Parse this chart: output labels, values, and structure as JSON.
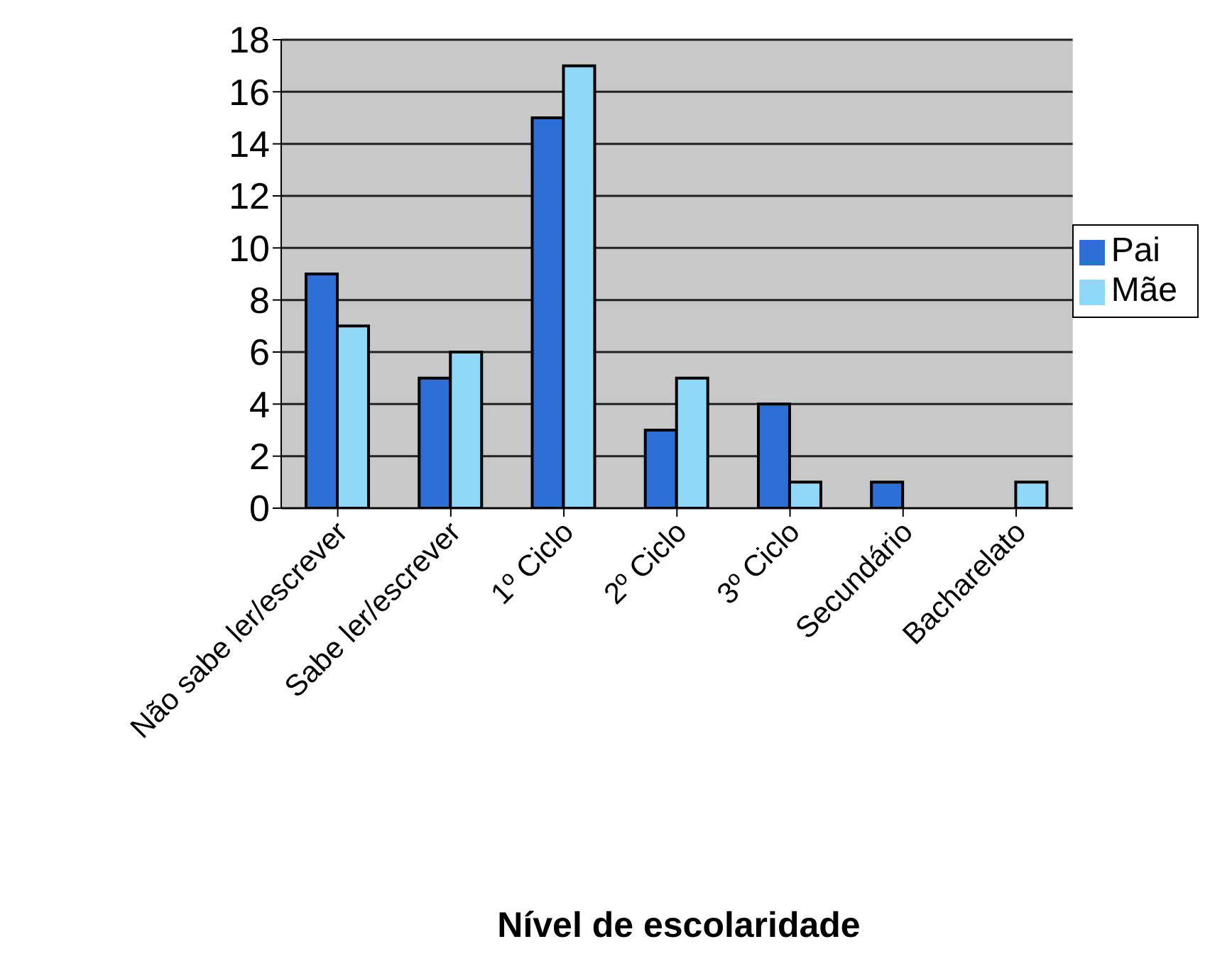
{
  "chart_data": {
    "type": "bar",
    "xlabel": "Nível de escolaridade",
    "categories": [
      "Não sabe ler/escrever",
      "Sabe ler/escrever",
      "1º Ciclo",
      "2º Ciclo",
      "3º Ciclo",
      "Secundário",
      "Bacharelato"
    ],
    "series": [
      {
        "name": "Pai",
        "color": "#2e6fd6",
        "values": [
          9,
          5,
          15,
          3,
          4,
          1,
          0
        ]
      },
      {
        "name": "Mãe",
        "color": "#8fd8f8",
        "values": [
          7,
          6,
          17,
          5,
          1,
          0,
          1
        ]
      }
    ],
    "ylim": [
      0,
      18
    ],
    "yticks": [
      0,
      2,
      4,
      6,
      8,
      10,
      12,
      14,
      16,
      18
    ],
    "grid": "y",
    "legend": "right"
  }
}
